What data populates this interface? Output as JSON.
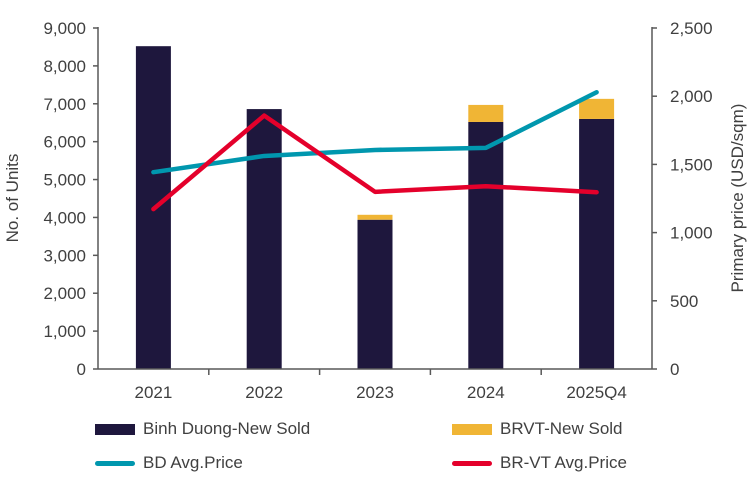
{
  "chart_data": {
    "type": "bar+line",
    "categories": [
      "2021",
      "2022",
      "2023",
      "2024",
      "2025Q4"
    ],
    "ylabel": "No. of Units",
    "y2label": "Primary price (USD/sqm)",
    "ylim": [
      0,
      9000
    ],
    "y2lim": [
      0,
      2500
    ],
    "yticks": [
      "0",
      "1,000",
      "2,000",
      "3,000",
      "4,000",
      "5,000",
      "6,000",
      "7,000",
      "8,000",
      "9,000"
    ],
    "y2ticks": [
      "0",
      "500",
      "1,000",
      "1,500",
      "2,000",
      "2,500"
    ],
    "bar_series": [
      {
        "name": "Binh Duong-New Sold",
        "color": "#1e173d",
        "values": [
          8520,
          6860,
          3940,
          6520,
          6600
        ]
      },
      {
        "name": "BRVT-New Sold",
        "color": "#f0b535",
        "values": [
          0,
          0,
          130,
          450,
          530
        ]
      }
    ],
    "line_series": [
      {
        "name": "BD Avg.Price",
        "color": "#0097ae",
        "axis": "right",
        "values": [
          1443,
          1562,
          1606,
          1621,
          2029
        ]
      },
      {
        "name": "BR-VT Avg.Price",
        "color": "#e4002b",
        "axis": "right",
        "values": [
          1172,
          1858,
          1299,
          1340,
          1296
        ]
      }
    ],
    "stacked": true,
    "grid": false,
    "legend": "bottom"
  }
}
